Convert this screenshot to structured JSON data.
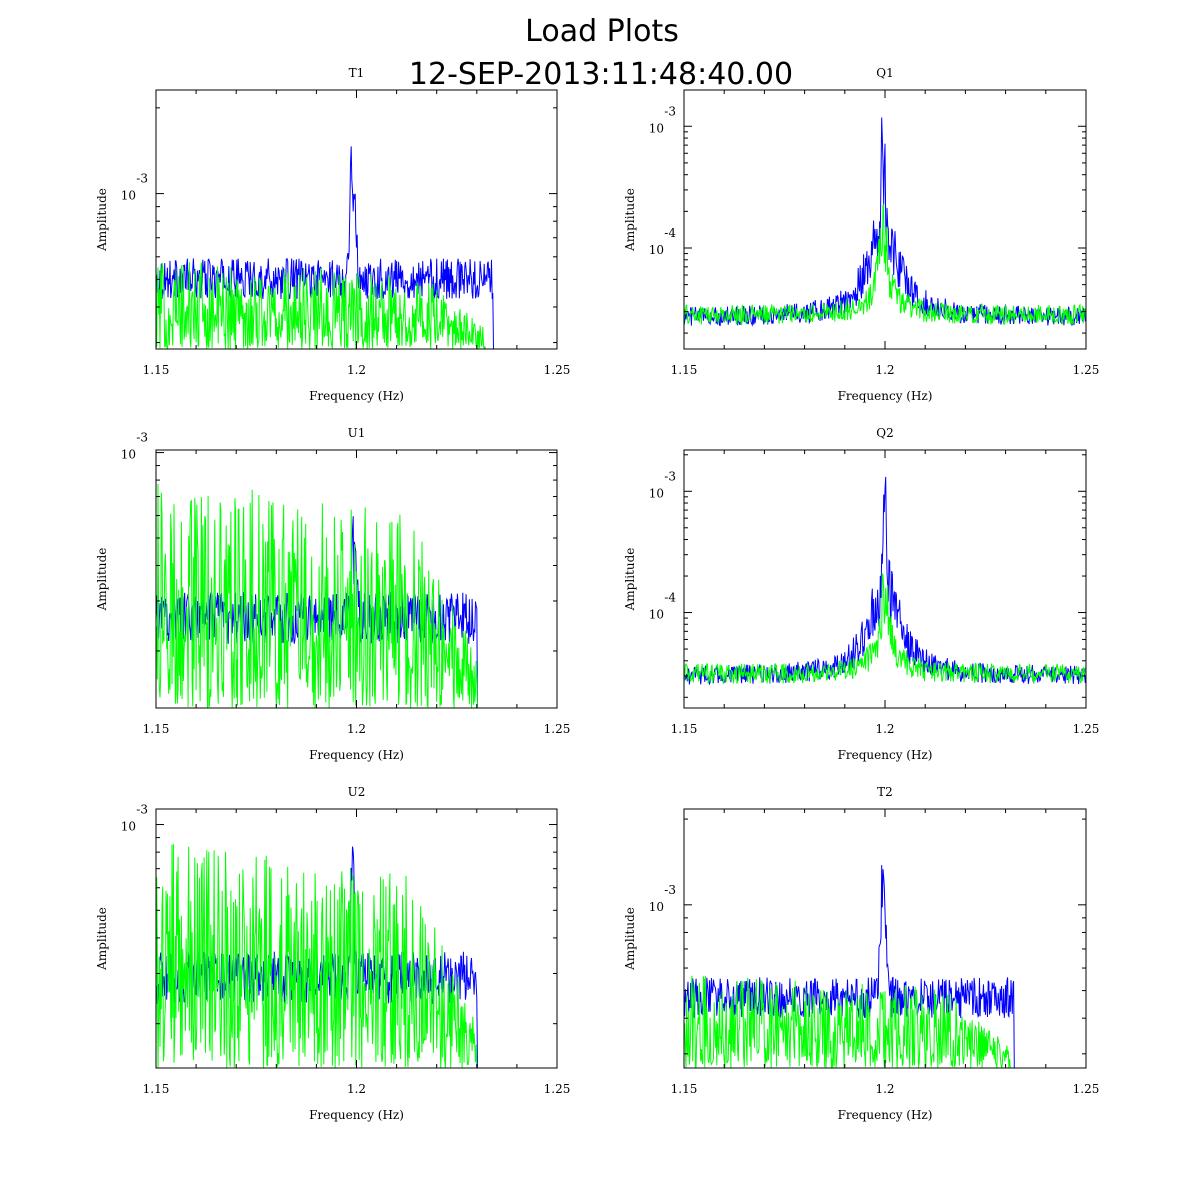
{
  "figure": {
    "title": "Load Plots",
    "subtitle": "12-SEP-2013:11:48:40.00"
  },
  "chart_data": [
    {
      "type": "line",
      "title": "T1",
      "xlabel": "Frequency (Hz)",
      "ylabel": "Amplitude",
      "xlim": [
        1.15,
        1.25
      ],
      "xticks": [
        "1.15",
        "1.2",
        "1.25"
      ],
      "ylog": true,
      "yticks": [
        {
          "base": "10",
          "exp": "-3",
          "frac": 0.6
        }
      ],
      "series": [
        {
          "color": "#0000ff",
          "profile": "peak",
          "peak_x": 1.199,
          "peak": 0.98,
          "floor": 0.35,
          "sigma": 0.0006,
          "skirt": 0.0,
          "cutoff": 1.234
        },
        {
          "color": "#00ff00",
          "profile": "noise",
          "level": 0.38,
          "slope": 0.2,
          "cutoff": 1.232,
          "noise": 0.9
        }
      ]
    },
    {
      "type": "line",
      "title": "Q1",
      "xlabel": "Frequency (Hz)",
      "ylabel": "Amplitude",
      "xlim": [
        1.15,
        1.25
      ],
      "xticks": [
        "1.15",
        "1.2",
        "1.25"
      ],
      "ylog": true,
      "yticks": [
        {
          "base": "10",
          "exp": "-3",
          "frac": 0.86
        },
        {
          "base": "10",
          "exp": "-4",
          "frac": 0.39
        }
      ],
      "series": [
        {
          "color": "#0000ff",
          "profile": "peak",
          "peak_x": 1.1995,
          "peak": 0.98,
          "floor": 0.16,
          "sigma": 0.0008,
          "skirt": 0.0045,
          "cutoff": 1.25
        },
        {
          "color": "#00ff00",
          "profile": "peak",
          "peak_x": 1.1995,
          "peak": 0.6,
          "floor": 0.17,
          "sigma": 0.0012,
          "skirt": 0.003,
          "cutoff": 1.25
        }
      ]
    },
    {
      "type": "line",
      "title": "U1",
      "xlabel": "Frequency (Hz)",
      "ylabel": "Amplitude",
      "xlim": [
        1.15,
        1.25
      ],
      "xticks": [
        "1.15",
        "1.2",
        "1.25"
      ],
      "ylog": true,
      "yticks": [
        {
          "base": "10",
          "exp": "-3",
          "frac": 0.99
        }
      ],
      "series": [
        {
          "color": "#0000ff",
          "profile": "peak",
          "peak_x": 1.1995,
          "peak": 0.86,
          "floor": 0.45,
          "sigma": 0.0005,
          "skirt": 0.0,
          "cutoff": 1.23
        },
        {
          "color": "#00ff00",
          "profile": "noise",
          "level": 0.9,
          "slope": 0.25,
          "cutoff": 1.23,
          "noise": 1.0
        }
      ]
    },
    {
      "type": "line",
      "title": "Q2",
      "xlabel": "Frequency (Hz)",
      "ylabel": "Amplitude",
      "xlim": [
        1.15,
        1.25
      ],
      "xticks": [
        "1.15",
        "1.2",
        "1.25"
      ],
      "ylog": true,
      "yticks": [
        {
          "base": "10",
          "exp": "-3",
          "frac": 0.84
        },
        {
          "base": "10",
          "exp": "-4",
          "frac": 0.37
        }
      ],
      "series": [
        {
          "color": "#0000ff",
          "profile": "peak",
          "peak_x": 1.2,
          "peak": 0.99,
          "floor": 0.16,
          "sigma": 0.0008,
          "skirt": 0.0045,
          "cutoff": 1.25
        },
        {
          "color": "#00ff00",
          "profile": "peak",
          "peak_x": 1.2,
          "peak": 0.58,
          "floor": 0.17,
          "sigma": 0.0012,
          "skirt": 0.003,
          "cutoff": 1.25
        }
      ]
    },
    {
      "type": "line",
      "title": "U2",
      "xlabel": "Frequency (Hz)",
      "ylabel": "Amplitude",
      "xlim": [
        1.15,
        1.25
      ],
      "xticks": [
        "1.15",
        "1.2",
        "1.25"
      ],
      "ylog": true,
      "yticks": [
        {
          "base": "10",
          "exp": "-3",
          "frac": 0.94
        }
      ],
      "series": [
        {
          "color": "#0000ff",
          "profile": "peak",
          "peak_x": 1.199,
          "peak": 0.95,
          "floor": 0.45,
          "sigma": 0.0005,
          "skirt": 0.0,
          "cutoff": 1.23
        },
        {
          "color": "#00ff00",
          "profile": "noise",
          "level": 0.88,
          "slope": 0.25,
          "cutoff": 1.23,
          "noise": 1.0
        }
      ]
    },
    {
      "type": "line",
      "title": "T2",
      "xlabel": "Frequency (Hz)",
      "ylabel": "Amplitude",
      "xlim": [
        1.15,
        1.25
      ],
      "xticks": [
        "1.15",
        "1.2",
        "1.25"
      ],
      "ylog": true,
      "yticks": [
        {
          "base": "10",
          "exp": "-3",
          "frac": 0.63
        }
      ],
      "series": [
        {
          "color": "#0000ff",
          "profile": "peak",
          "peak_x": 1.1995,
          "peak": 0.98,
          "floor": 0.35,
          "sigma": 0.0006,
          "skirt": 0.0,
          "cutoff": 1.232
        },
        {
          "color": "#00ff00",
          "profile": "noise",
          "level": 0.4,
          "slope": 0.2,
          "cutoff": 1.231,
          "noise": 0.9
        }
      ]
    }
  ]
}
